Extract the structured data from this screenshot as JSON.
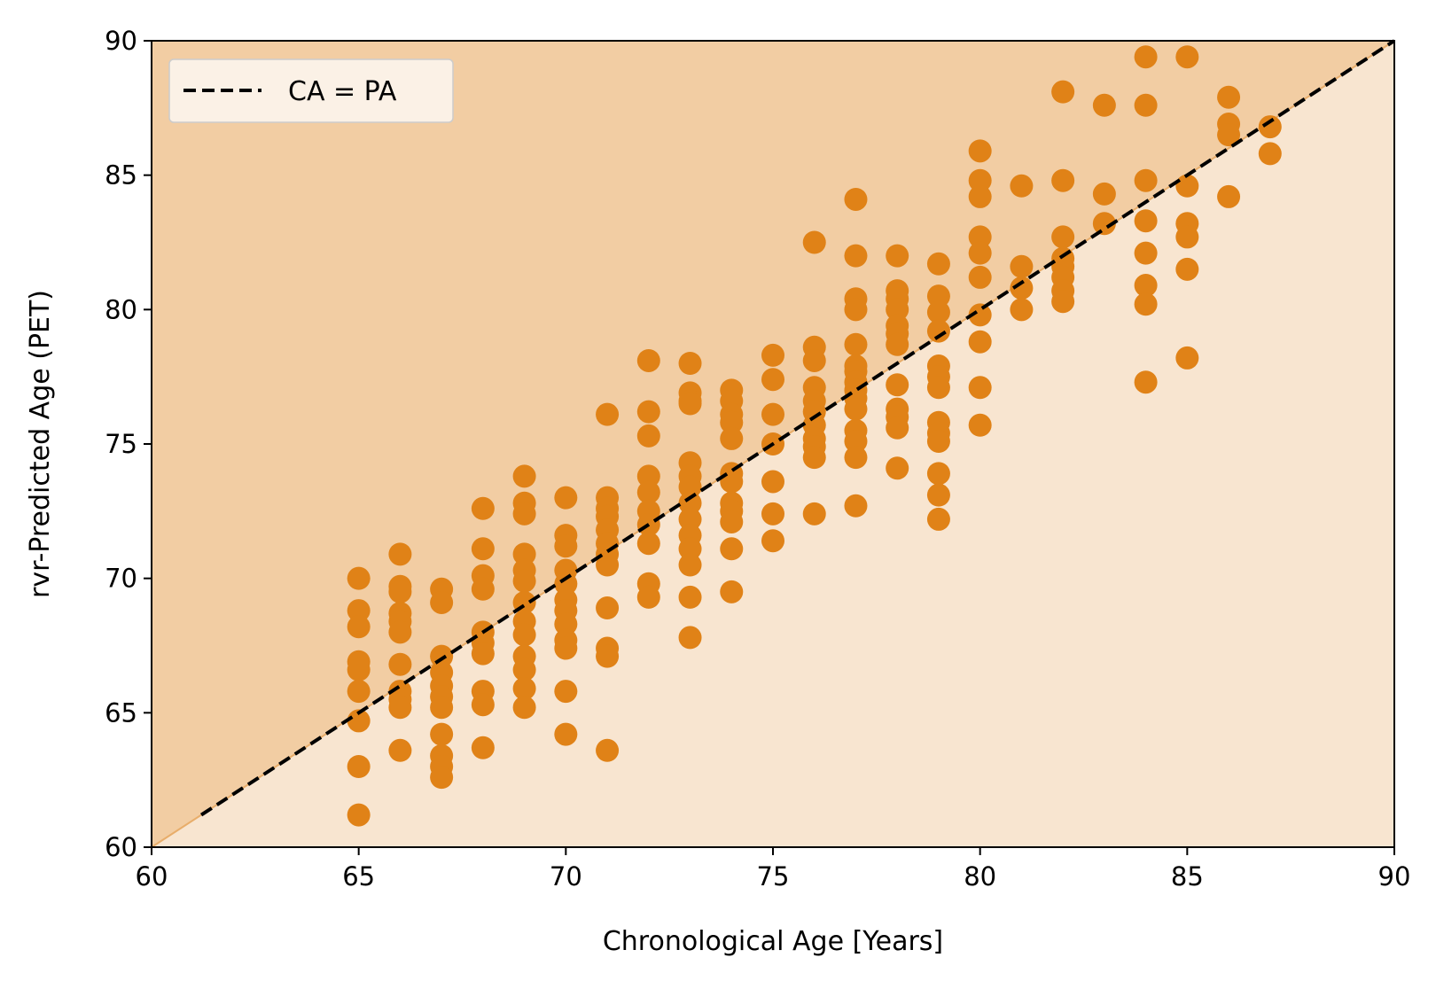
{
  "chart_data": {
    "type": "scatter",
    "title": "",
    "xlabel": "Chronological Age [Years]",
    "ylabel": "rvr-Predicted Age (PET)",
    "xlim": [
      60,
      90
    ],
    "ylim": [
      60,
      90
    ],
    "x_ticks": [
      60,
      65,
      70,
      75,
      80,
      85,
      90
    ],
    "y_ticks": [
      60,
      65,
      70,
      75,
      80,
      85,
      90
    ],
    "x_tick_labels": [
      "60",
      "65",
      "70",
      "75",
      "80",
      "85",
      "90"
    ],
    "y_tick_labels": [
      "60",
      "65",
      "70",
      "75",
      "80",
      "85",
      "90"
    ],
    "grid": false,
    "legend": {
      "position": "top-left",
      "entries": [
        {
          "label": "CA = PA",
          "style": "dashed-line"
        }
      ]
    },
    "identity_line": {
      "label": "CA = PA",
      "from": [
        61.2,
        61.2
      ],
      "to": [
        90,
        90
      ]
    },
    "colors": {
      "points": "#e08217",
      "region_above": "#f2cda3",
      "region_below": "#f8e5d0",
      "diagonal_edge": "#e8ad6a",
      "identity_line": "#000000",
      "legend_bg": "#fbf1e6",
      "legend_border": "#cccccc"
    },
    "series": [
      {
        "points": [
          [
            65,
            70.0
          ],
          [
            65,
            68.8
          ],
          [
            65,
            68.2
          ],
          [
            65,
            66.9
          ],
          [
            65,
            66.6
          ],
          [
            65,
            65.8
          ],
          [
            65,
            64.7
          ],
          [
            65,
            63.0
          ],
          [
            65,
            61.2
          ],
          [
            66,
            70.9
          ],
          [
            66,
            69.7
          ],
          [
            66,
            69.5
          ],
          [
            66,
            68.7
          ],
          [
            66,
            68.4
          ],
          [
            66,
            68.0
          ],
          [
            66,
            66.8
          ],
          [
            66,
            65.8
          ],
          [
            66,
            65.5
          ],
          [
            66,
            65.2
          ],
          [
            66,
            63.6
          ],
          [
            67,
            69.6
          ],
          [
            67,
            69.1
          ],
          [
            67,
            67.1
          ],
          [
            67,
            66.5
          ],
          [
            67,
            66.0
          ],
          [
            67,
            65.6
          ],
          [
            67,
            65.2
          ],
          [
            67,
            64.2
          ],
          [
            67,
            63.4
          ],
          [
            67,
            63.0
          ],
          [
            67,
            62.6
          ],
          [
            68,
            72.6
          ],
          [
            68,
            71.1
          ],
          [
            68,
            70.1
          ],
          [
            68,
            69.6
          ],
          [
            68,
            68.0
          ],
          [
            68,
            67.6
          ],
          [
            68,
            67.2
          ],
          [
            68,
            65.8
          ],
          [
            68,
            65.3
          ],
          [
            68,
            63.7
          ],
          [
            69,
            73.8
          ],
          [
            69,
            72.8
          ],
          [
            69,
            72.4
          ],
          [
            69,
            70.9
          ],
          [
            69,
            70.3
          ],
          [
            69,
            69.9
          ],
          [
            69,
            69.1
          ],
          [
            69,
            68.4
          ],
          [
            69,
            67.9
          ],
          [
            69,
            67.1
          ],
          [
            69,
            66.6
          ],
          [
            69,
            65.9
          ],
          [
            69,
            65.2
          ],
          [
            70,
            73.0
          ],
          [
            70,
            71.6
          ],
          [
            70,
            71.2
          ],
          [
            70,
            70.3
          ],
          [
            70,
            69.8
          ],
          [
            70,
            69.2
          ],
          [
            70,
            68.8
          ],
          [
            70,
            68.3
          ],
          [
            70,
            67.7
          ],
          [
            70,
            67.4
          ],
          [
            70,
            65.8
          ],
          [
            70,
            64.2
          ],
          [
            71,
            76.1
          ],
          [
            71,
            73.0
          ],
          [
            71,
            72.6
          ],
          [
            71,
            72.3
          ],
          [
            71,
            71.8
          ],
          [
            71,
            71.3
          ],
          [
            71,
            70.9
          ],
          [
            71,
            70.5
          ],
          [
            71,
            68.9
          ],
          [
            71,
            67.4
          ],
          [
            71,
            67.1
          ],
          [
            71,
            63.6
          ],
          [
            72,
            78.1
          ],
          [
            72,
            76.2
          ],
          [
            72,
            75.3
          ],
          [
            72,
            73.8
          ],
          [
            72,
            73.2
          ],
          [
            72,
            72.5
          ],
          [
            72,
            72.0
          ],
          [
            72,
            71.3
          ],
          [
            72,
            69.8
          ],
          [
            72,
            69.3
          ],
          [
            73,
            78.0
          ],
          [
            73,
            76.9
          ],
          [
            73,
            76.6
          ],
          [
            73,
            76.5
          ],
          [
            73,
            74.3
          ],
          [
            73,
            73.8
          ],
          [
            73,
            73.4
          ],
          [
            73,
            72.8
          ],
          [
            73,
            72.2
          ],
          [
            73,
            71.6
          ],
          [
            73,
            71.1
          ],
          [
            73,
            70.5
          ],
          [
            73,
            69.3
          ],
          [
            73,
            67.8
          ],
          [
            74,
            77.0
          ],
          [
            74,
            76.6
          ],
          [
            74,
            76.1
          ],
          [
            74,
            75.8
          ],
          [
            74,
            75.2
          ],
          [
            74,
            73.9
          ],
          [
            74,
            73.6
          ],
          [
            74,
            72.8
          ],
          [
            74,
            72.5
          ],
          [
            74,
            72.1
          ],
          [
            74,
            71.1
          ],
          [
            74,
            69.5
          ],
          [
            75,
            78.3
          ],
          [
            75,
            77.4
          ],
          [
            75,
            76.1
          ],
          [
            75,
            75.0
          ],
          [
            75,
            73.6
          ],
          [
            75,
            72.4
          ],
          [
            75,
            71.4
          ],
          [
            76,
            82.5
          ],
          [
            76,
            78.6
          ],
          [
            76,
            78.1
          ],
          [
            76,
            77.1
          ],
          [
            76,
            76.6
          ],
          [
            76,
            76.2
          ],
          [
            76,
            75.7
          ],
          [
            76,
            75.2
          ],
          [
            76,
            74.9
          ],
          [
            76,
            74.5
          ],
          [
            76,
            72.4
          ],
          [
            77,
            84.1
          ],
          [
            77,
            82.0
          ],
          [
            77,
            80.4
          ],
          [
            77,
            80.0
          ],
          [
            77,
            78.7
          ],
          [
            77,
            77.9
          ],
          [
            77,
            77.7
          ],
          [
            77,
            77.3
          ],
          [
            77,
            77.0
          ],
          [
            77,
            76.7
          ],
          [
            77,
            76.3
          ],
          [
            77,
            75.5
          ],
          [
            77,
            75.1
          ],
          [
            77,
            74.5
          ],
          [
            77,
            72.7
          ],
          [
            78,
            82.0
          ],
          [
            78,
            80.7
          ],
          [
            78,
            80.4
          ],
          [
            78,
            80.0
          ],
          [
            78,
            79.4
          ],
          [
            78,
            79.1
          ],
          [
            78,
            78.7
          ],
          [
            78,
            77.2
          ],
          [
            78,
            76.3
          ],
          [
            78,
            76.0
          ],
          [
            78,
            75.6
          ],
          [
            78,
            74.1
          ],
          [
            79,
            81.7
          ],
          [
            79,
            80.5
          ],
          [
            79,
            79.9
          ],
          [
            79,
            79.2
          ],
          [
            79,
            77.9
          ],
          [
            79,
            77.5
          ],
          [
            79,
            77.1
          ],
          [
            79,
            75.8
          ],
          [
            79,
            75.4
          ],
          [
            79,
            75.1
          ],
          [
            79,
            73.9
          ],
          [
            79,
            73.1
          ],
          [
            79,
            72.2
          ],
          [
            80,
            85.9
          ],
          [
            80,
            84.8
          ],
          [
            80,
            84.2
          ],
          [
            80,
            82.7
          ],
          [
            80,
            82.1
          ],
          [
            80,
            81.2
          ],
          [
            80,
            79.8
          ],
          [
            80,
            78.8
          ],
          [
            80,
            77.1
          ],
          [
            80,
            75.7
          ],
          [
            81,
            84.6
          ],
          [
            81,
            81.6
          ],
          [
            81,
            80.8
          ],
          [
            81,
            80.0
          ],
          [
            82,
            88.1
          ],
          [
            82,
            84.8
          ],
          [
            82,
            82.7
          ],
          [
            82,
            81.9
          ],
          [
            82,
            81.6
          ],
          [
            82,
            81.2
          ],
          [
            82,
            80.7
          ],
          [
            82,
            80.3
          ],
          [
            83,
            87.6
          ],
          [
            83,
            84.3
          ],
          [
            83,
            83.2
          ],
          [
            84,
            89.4
          ],
          [
            84,
            87.6
          ],
          [
            84,
            84.8
          ],
          [
            84,
            83.3
          ],
          [
            84,
            82.1
          ],
          [
            84,
            80.9
          ],
          [
            84,
            80.2
          ],
          [
            84,
            77.3
          ],
          [
            85,
            89.4
          ],
          [
            85,
            84.6
          ],
          [
            85,
            83.2
          ],
          [
            85,
            82.7
          ],
          [
            85,
            81.5
          ],
          [
            85,
            78.2
          ],
          [
            86,
            87.9
          ],
          [
            86,
            86.9
          ],
          [
            86,
            86.5
          ],
          [
            86,
            84.2
          ],
          [
            87,
            86.8
          ],
          [
            87,
            85.8
          ]
        ]
      }
    ]
  }
}
